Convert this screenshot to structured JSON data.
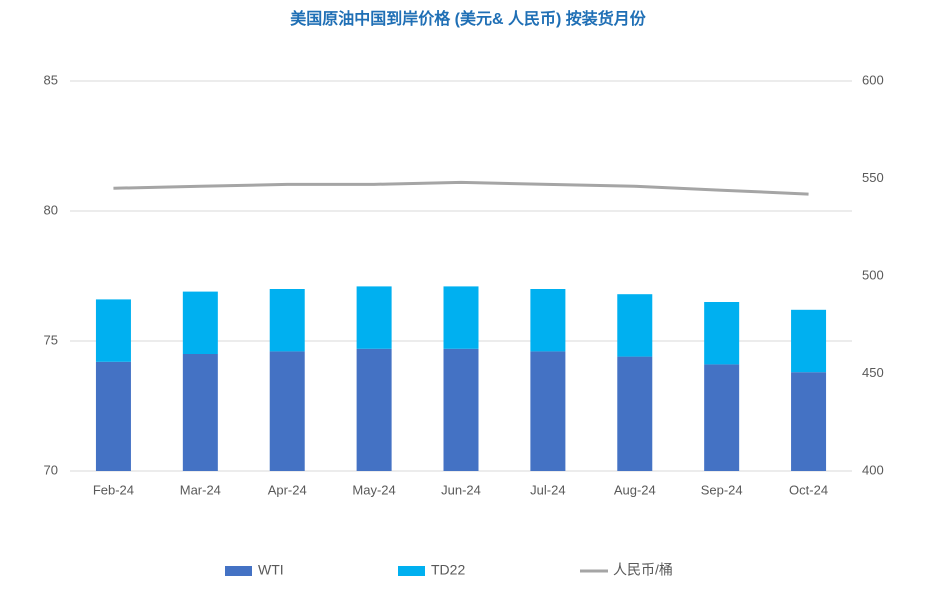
{
  "chart_data": {
    "type": "bar",
    "title": "美国原油中国到岸价格 (美元& 人民币) 按装货月份",
    "categories": [
      "Feb-24",
      "Mar-24",
      "Apr-24",
      "May-24",
      "Jun-24",
      "Jul-24",
      "Aug-24",
      "Sep-24",
      "Oct-24"
    ],
    "stacked": true,
    "series": [
      {
        "name": "WTI",
        "color": "#4472c4",
        "values": [
          74.2,
          74.5,
          74.6,
          74.7,
          74.7,
          74.6,
          74.4,
          74.1,
          73.8
        ]
      },
      {
        "name": "TD22",
        "color": "#00b0f0",
        "values": [
          2.4,
          2.4,
          2.4,
          2.4,
          2.4,
          2.4,
          2.4,
          2.4,
          2.4
        ]
      },
      {
        "name": "人民币/桶",
        "type": "line",
        "axis": "y2",
        "color": "#a5a5a5",
        "values": [
          545,
          546,
          547,
          547,
          548,
          547,
          546,
          544,
          542
        ]
      }
    ],
    "ylim": [
      70,
      85
    ],
    "yticks": [
      70,
      75,
      80,
      85
    ],
    "y2lim": [
      400,
      600
    ],
    "y2ticks": [
      400,
      450,
      500,
      550,
      600
    ],
    "grid": true,
    "legend": "bottom"
  }
}
